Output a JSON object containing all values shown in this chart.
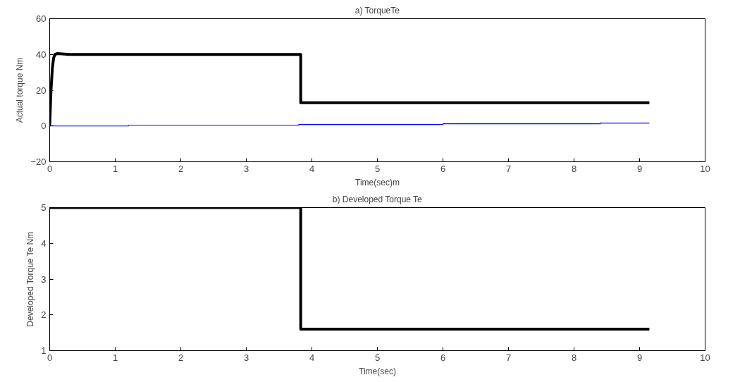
{
  "chart_data": [
    {
      "type": "line",
      "title": "a) TorqueTe",
      "xlabel": "Time(sec)m",
      "ylabel": "Actual torque Nm",
      "xlim": [
        0,
        10
      ],
      "ylim": [
        -20,
        60
      ],
      "xticks": [
        0,
        1,
        2,
        3,
        4,
        5,
        6,
        7,
        8,
        9,
        10
      ],
      "yticks": [
        -20,
        0,
        20,
        40,
        60
      ],
      "grid": false,
      "series": [
        {
          "color": "#000000",
          "x": [
            0,
            0.02,
            0.04,
            0.06,
            0.08,
            0.12,
            0.3,
            3.83,
            3.83,
            9.15
          ],
          "values": [
            0,
            20,
            32,
            38,
            40,
            40.5,
            40,
            40,
            13,
            13
          ]
        },
        {
          "color": "#0000ff",
          "x": [
            0,
            1.2,
            1.2,
            3.8,
            3.8,
            6.0,
            6.0,
            8.4,
            8.4,
            9.15
          ],
          "values": [
            0,
            0,
            0.4,
            0.4,
            0.8,
            0.8,
            1.2,
            1.2,
            1.6,
            1.6
          ]
        }
      ]
    },
    {
      "type": "line",
      "title": "b) Developed Torque Te",
      "xlabel": "Time(sec)",
      "ylabel": "Developed Torque Te Nm",
      "xlim": [
        0,
        10
      ],
      "ylim": [
        1,
        5
      ],
      "xticks": [
        0,
        1,
        2,
        3,
        4,
        5,
        6,
        7,
        8,
        9,
        10
      ],
      "yticks": [
        1,
        2,
        3,
        4,
        5
      ],
      "grid": false,
      "series": [
        {
          "color": "#000000",
          "x": [
            0,
            3.83,
            3.83,
            9.15
          ],
          "values": [
            5,
            5,
            1.6,
            1.6
          ]
        }
      ]
    }
  ]
}
